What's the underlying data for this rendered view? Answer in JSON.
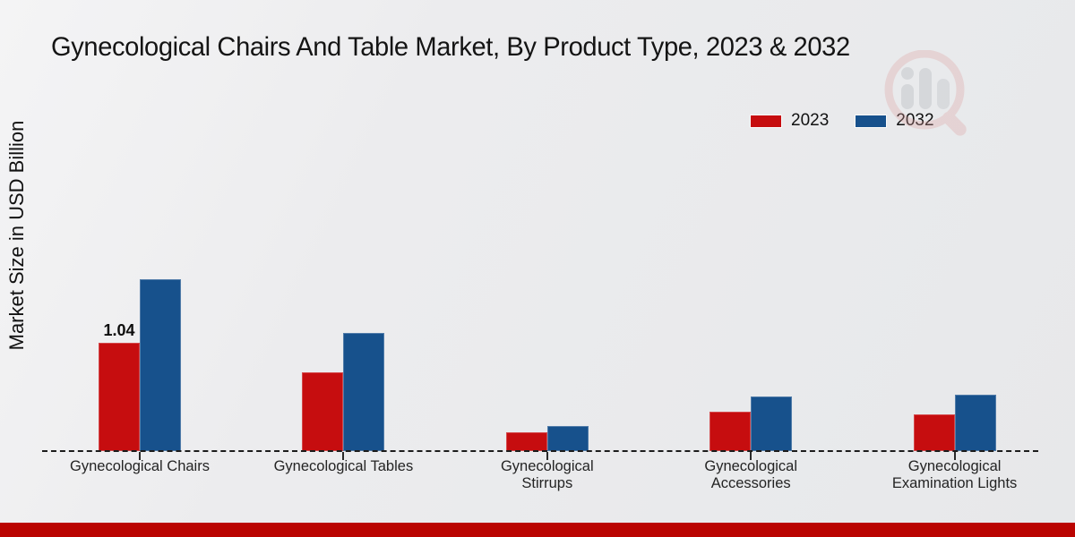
{
  "chart_data": {
    "type": "bar",
    "title": "Gynecological Chairs And Table Market, By Product Type, 2023 & 2032",
    "ylabel": "Market Size in USD Billion",
    "xlabel": "",
    "categories": [
      "Gynecological Chairs",
      "Gynecological Tables",
      "Gynecological Stirrups",
      "Gynecological Accessories",
      "Gynecological Examination Lights"
    ],
    "series": [
      {
        "name": "2023",
        "color": "#c60d0f",
        "values": [
          1.04,
          0.76,
          0.18,
          0.38,
          0.35
        ]
      },
      {
        "name": "2032",
        "color": "#17518c",
        "values": [
          1.65,
          1.13,
          0.24,
          0.52,
          0.54
        ]
      }
    ],
    "annotations": [
      {
        "series_index": 0,
        "category_index": 0,
        "text": "1.04"
      }
    ],
    "ylim": [
      0,
      2
    ],
    "grid": false,
    "y_axis_ticks_visible": false,
    "baseline_style": "dashed",
    "legend_position": "top-right"
  },
  "colors": {
    "series_2023": "#c60d0f",
    "series_2032": "#17518c",
    "footer_bar": "#ba0401",
    "axis": "#1c1c1c",
    "background": "#ececee"
  },
  "watermark": {
    "icon": "market-research-magnifier-logo"
  }
}
